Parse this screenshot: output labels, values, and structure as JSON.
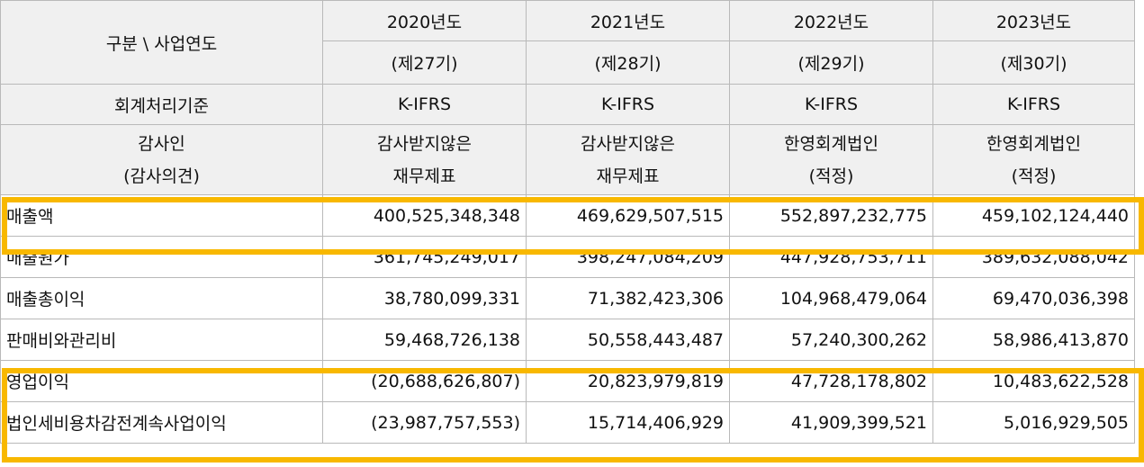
{
  "header": {
    "corner_label": "구분 \\ 사업연도",
    "years": [
      {
        "year": "2020년도",
        "period": "(제27기)",
        "standard": "K-IFRS",
        "auditor_l1": "감사받지않은",
        "auditor_l2": "재무제표"
      },
      {
        "year": "2021년도",
        "period": "(제28기)",
        "standard": "K-IFRS",
        "auditor_l1": "감사받지않은",
        "auditor_l2": "재무제표"
      },
      {
        "year": "2022년도",
        "period": "(제29기)",
        "standard": "K-IFRS",
        "auditor_l1": "한영회계법인",
        "auditor_l2": "(적정)"
      },
      {
        "year": "2023년도",
        "period": "(제30기)",
        "standard": "K-IFRS",
        "auditor_l1": "한영회계법인",
        "auditor_l2": "(적정)"
      }
    ],
    "standard_label": "회계처리기준",
    "auditor_label_l1": "감사인",
    "auditor_label_l2": "(감사의견)"
  },
  "rows": [
    {
      "label": "매출액",
      "values": [
        "400,525,348,348",
        "469,629,507,515",
        "552,897,232,775",
        "459,102,124,440"
      ]
    },
    {
      "label": "매출원가",
      "values": [
        "361,745,249,017",
        "398,247,084,209",
        "447,928,753,711",
        "389,632,088,042"
      ]
    },
    {
      "label": "매출총이익",
      "values": [
        "38,780,099,331",
        "71,382,423,306",
        "104,968,479,064",
        "69,470,036,398"
      ]
    },
    {
      "label": "판매비와관리비",
      "values": [
        "59,468,726,138",
        "50,558,443,487",
        "57,240,300,262",
        "58,986,413,870"
      ]
    },
    {
      "label": "영업이익",
      "values": [
        "(20,688,626,807)",
        "20,823,979,819",
        "47,728,178,802",
        "10,483,622,528"
      ]
    },
    {
      "label": "법인세비용차감전계속사업이익",
      "values": [
        "(23,987,757,553)",
        "15,714,406,929",
        "41,909,399,521",
        "5,016,929,505"
      ]
    }
  ],
  "highlight_color": "#f8b800"
}
